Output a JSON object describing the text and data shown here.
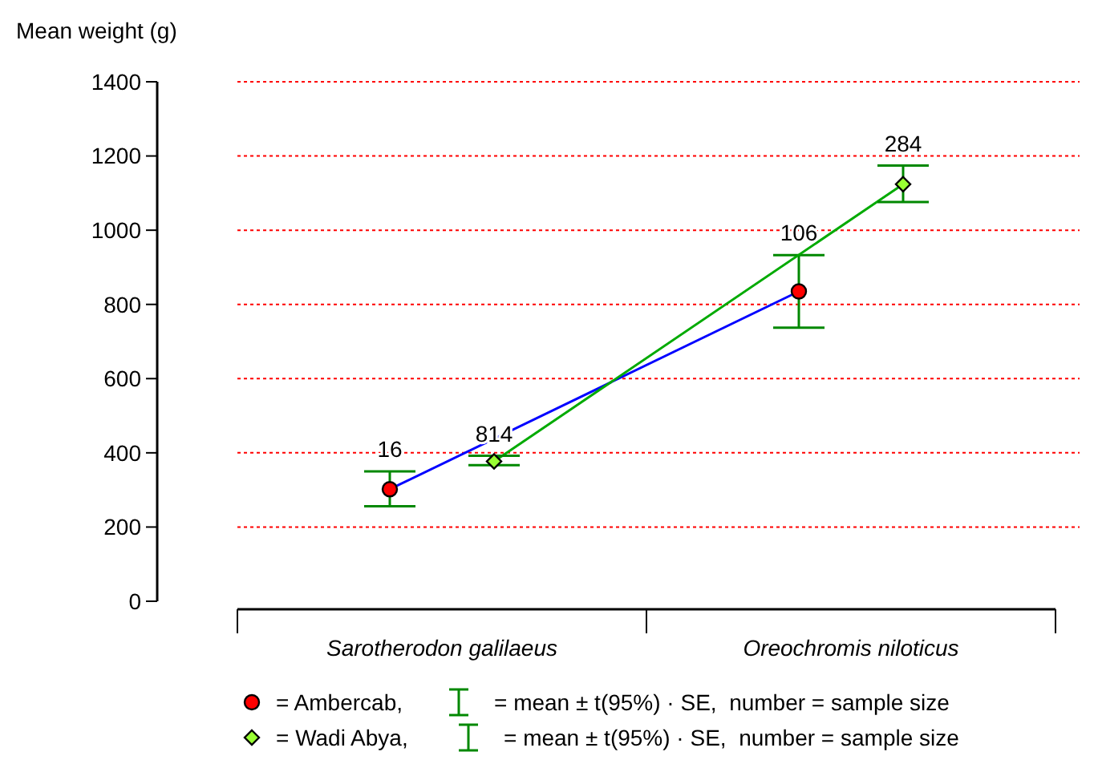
{
  "chart_data": {
    "type": "line",
    "ylabel": "Mean weight (g)",
    "categories": [
      "Sarotherodon galilaeus",
      "Oreochromis niloticus"
    ],
    "series": [
      {
        "name": "= Ambercab,",
        "color": "#0000ff",
        "colors": [
          "#ff0000",
          "#ff0000"
        ],
        "marker": "circle",
        "values": [
          302,
          835
        ],
        "errors": [
          [
            256,
            350
          ],
          [
            737,
            933
          ]
        ]
      },
      {
        "name": "= Wadi Abya,",
        "color": "#00aa00",
        "colors": [
          "#99ff33",
          "#99ff33"
        ],
        "marker": "diamond",
        "values": [
          377,
          1124
        ],
        "errors": [
          [
            367,
            392
          ],
          [
            1076,
            1174
          ]
        ]
      }
    ],
    "ylim": [
      0,
      1400
    ],
    "yticks": [
      0,
      200,
      400,
      600,
      800,
      1000,
      1200,
      1400
    ],
    "grid": "y",
    "legend": "bottom",
    "annotations": [
      "= mean ± t(95%) · SE,  number = sample size",
      "16",
      "106",
      "814",
      "284"
    ]
  }
}
